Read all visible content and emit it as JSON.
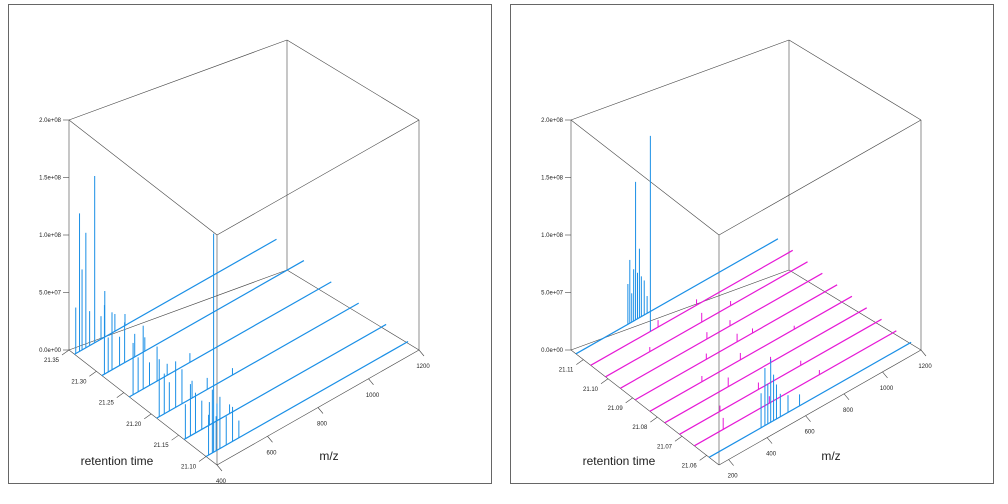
{
  "chart_data": [
    {
      "type": "3d-spectra-stack",
      "xlabel": "m/z",
      "ylabel": "retention time",
      "zlim": [
        0,
        200000000
      ],
      "z_ticks": [
        "0.0e+00",
        "5.0e+07",
        "1.0e+08",
        "1.5e+08",
        "2.0e+08"
      ],
      "z_tick_values": [
        0,
        50000000,
        100000000,
        150000000,
        200000000
      ],
      "x_ticks": [
        "400",
        "600",
        "800",
        "1000",
        "1200"
      ],
      "x_tick_values": [
        400,
        600,
        800,
        1000,
        1200
      ],
      "xlim": [
        400,
        1200
      ],
      "y_ticks": [
        "21.35",
        "21.30",
        "21.25",
        "21.20",
        "21.15",
        "21.10"
      ],
      "y_tick_values": [
        21.35,
        21.3,
        21.25,
        21.2,
        21.15,
        21.1
      ],
      "ylim": [
        21.35,
        21.08
      ],
      "series": [
        {
          "rt": 21.34,
          "color": "#1a8fe6",
          "peaks": [
            [
              405,
              40000000
            ],
            [
              420,
              120000000
            ],
            [
              430,
              70000000
            ],
            [
              445,
              100000000
            ],
            [
              460,
              30000000
            ],
            [
              480,
              145000000
            ],
            [
              505,
              20000000
            ],
            [
              520,
              40000000
            ],
            [
              560,
              15000000
            ],
            [
              600,
              10000000
            ]
          ]
        },
        {
          "rt": 21.29,
          "color": "#1a8fe6",
          "peaks": [
            [
              410,
              60000000
            ],
            [
              425,
              30000000
            ],
            [
              440,
              50000000
            ],
            [
              470,
              25000000
            ],
            [
              490,
              35000000
            ],
            [
              530,
              20000000
            ],
            [
              570,
              12000000
            ]
          ]
        },
        {
          "rt": 21.24,
          "color": "#1a8fe6",
          "peaks": [
            [
              415,
              45000000
            ],
            [
              435,
              30000000
            ],
            [
              455,
              55000000
            ],
            [
              480,
              20000000
            ],
            [
              510,
              30000000
            ],
            [
              550,
              10000000
            ],
            [
              640,
              8000000
            ]
          ]
        },
        {
          "rt": 21.19,
          "color": "#1a8fe6",
          "peaks": [
            [
              410,
              50000000
            ],
            [
              430,
              35000000
            ],
            [
              450,
              25000000
            ],
            [
              475,
              40000000
            ],
            [
              500,
              30000000
            ],
            [
              540,
              15000000
            ],
            [
              600,
              10000000
            ],
            [
              700,
              6000000
            ]
          ]
        },
        {
          "rt": 21.14,
          "color": "#1a8fe6",
          "peaks": [
            [
              405,
              30000000
            ],
            [
              425,
              45000000
            ],
            [
              445,
              35000000
            ],
            [
              470,
              25000000
            ],
            [
              500,
              20000000
            ],
            [
              530,
              15000000
            ],
            [
              580,
              8000000
            ]
          ]
        },
        {
          "rt": 21.1,
          "color": "#1a8fe6",
          "peaks": [
            [
              410,
              35000000
            ],
            [
              425,
              55000000
            ],
            [
              440,
              30000000
            ],
            [
              455,
              45000000
            ],
            [
              480,
              25000000
            ],
            [
              505,
              30000000
            ],
            [
              530,
              15000000
            ]
          ]
        }
      ],
      "spike": {
        "rt": 21.1,
        "mz": 430,
        "value": 190000000,
        "color": "#1a8fe6"
      }
    },
    {
      "type": "3d-spectra-stack",
      "xlabel": "m/z",
      "ylabel": "retention time",
      "zlim": [
        0,
        200000000
      ],
      "z_ticks": [
        "0.0e+00",
        "5.0e+07",
        "1.0e+08",
        "1.5e+08",
        "2.0e+08"
      ],
      "z_tick_values": [
        0,
        50000000,
        100000000,
        150000000,
        200000000
      ],
      "x_ticks": [
        "200",
        "400",
        "600",
        "800",
        "1000",
        "1200"
      ],
      "x_tick_values": [
        200,
        400,
        600,
        800,
        1000,
        1200
      ],
      "xlim": [
        150,
        1200
      ],
      "y_ticks": [
        "21.11",
        "21.10",
        "21.09",
        "21.08",
        "21.07",
        "21.06"
      ],
      "y_tick_values": [
        21.11,
        21.1,
        21.09,
        21.08,
        21.07,
        21.06
      ],
      "ylim": [
        21.115,
        21.055
      ],
      "series": [
        {
          "rt": 21.113,
          "color": "#1a8fe6",
          "peaks": [
            [
              420,
              35000000
            ],
            [
              430,
              55000000
            ],
            [
              440,
              25000000
            ],
            [
              450,
              45000000
            ],
            [
              460,
              120000000
            ],
            [
              470,
              40000000
            ],
            [
              480,
              60000000
            ],
            [
              490,
              35000000
            ],
            [
              505,
              30000000
            ],
            [
              520,
              15000000
            ]
          ]
        },
        {
          "rt": 21.107,
          "color": "#e619d6",
          "peaks": [
            [
              500,
              6000000
            ],
            [
              700,
              5000000
            ]
          ]
        },
        {
          "rt": 21.101,
          "color": "#e619d6",
          "peaks": [
            [
              380,
              4000000
            ],
            [
              650,
              8000000
            ],
            [
              800,
              4000000
            ]
          ]
        },
        {
          "rt": 21.095,
          "color": "#e619d6",
          "peaks": [
            [
              600,
              6000000
            ],
            [
              720,
              5000000
            ]
          ]
        },
        {
          "rt": 21.089,
          "color": "#e619d6",
          "peaks": [
            [
              520,
              5000000
            ],
            [
              680,
              7000000
            ],
            [
              760,
              4000000
            ]
          ]
        },
        {
          "rt": 21.083,
          "color": "#e619d6",
          "peaks": [
            [
              420,
              5000000
            ],
            [
              620,
              6000000
            ],
            [
              900,
              3000000
            ]
          ]
        },
        {
          "rt": 21.077,
          "color": "#e619d6",
          "peaks": [
            [
              480,
              8000000
            ],
            [
              700,
              5000000
            ]
          ]
        },
        {
          "rt": 21.071,
          "color": "#e619d6",
          "peaks": [
            [
              360,
              5000000
            ],
            [
              560,
              6000000
            ],
            [
              780,
              4000000
            ]
          ]
        },
        {
          "rt": 21.065,
          "color": "#e619d6",
          "peaks": [
            [
              300,
              10000000
            ],
            [
              540,
              6000000
            ],
            [
              800,
              4000000
            ]
          ]
        },
        {
          "rt": 21.059,
          "color": "#1a8fe6",
          "peaks": [
            [
              420,
              30000000
            ],
            [
              440,
              50000000
            ],
            [
              455,
              35000000
            ],
            [
              470,
              55000000
            ],
            [
              485,
              40000000
            ],
            [
              500,
              30000000
            ],
            [
              520,
              20000000
            ],
            [
              560,
              15000000
            ],
            [
              620,
              10000000
            ]
          ]
        }
      ],
      "spike": {
        "rt": 21.107,
        "mz": 460,
        "value": 170000000,
        "color": "#1a8fe6"
      }
    }
  ]
}
